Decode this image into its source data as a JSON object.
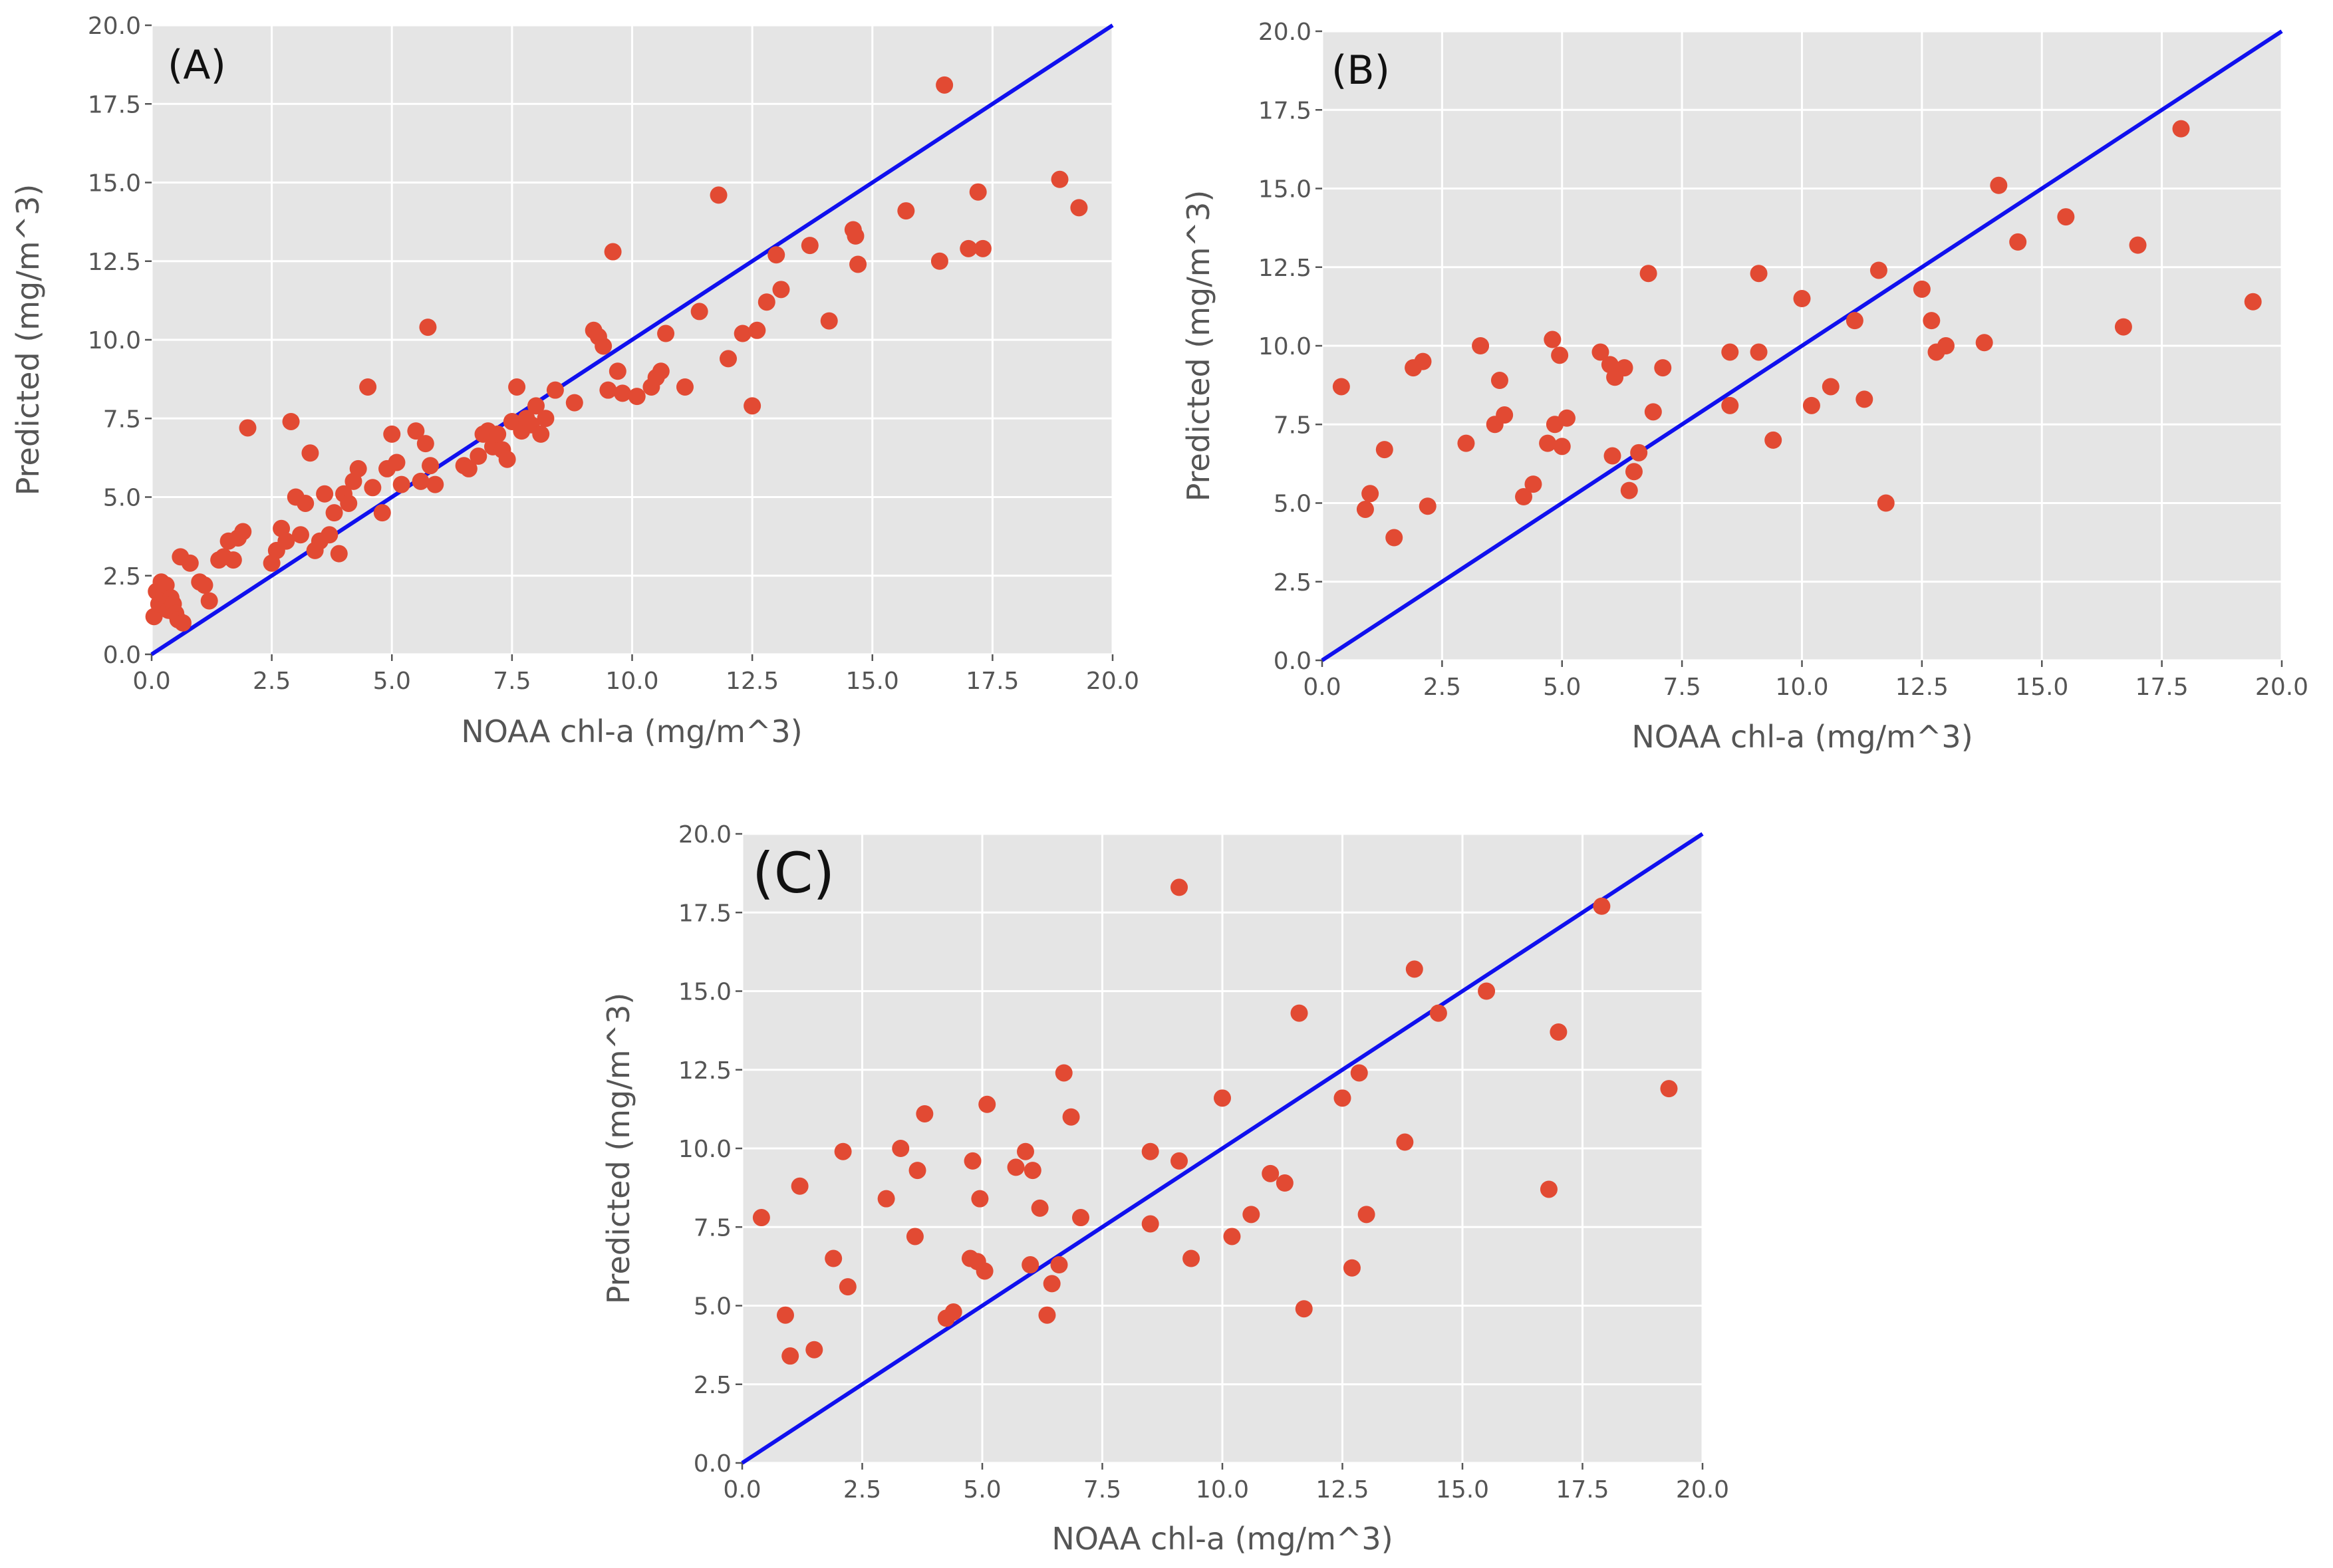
{
  "chart_data": [
    {
      "type": "scatter",
      "panel_label": "(A)",
      "xlabel": "NOAA chl-a (mg/m^3)",
      "ylabel": "Predicted (mg/m^3)",
      "xlim": [
        0,
        20
      ],
      "ylim": [
        0,
        20
      ],
      "x_ticks": [
        "0.0",
        "2.5",
        "5.0",
        "7.5",
        "10.0",
        "12.5",
        "15.0",
        "17.5",
        "20.0"
      ],
      "y_ticks": [
        "0.0",
        "2.5",
        "5.0",
        "7.5",
        "10.0",
        "12.5",
        "15.0",
        "17.5",
        "20.0"
      ],
      "grid": true,
      "reference_line": {
        "label": "y = x",
        "from": [
          0,
          0
        ],
        "to": [
          20,
          20
        ],
        "color": "#1010ee"
      },
      "marker_color": "#e24a33",
      "series": [
        {
          "name": "points",
          "points": [
            [
              0.05,
              1.2
            ],
            [
              0.1,
              2.0
            ],
            [
              0.15,
              1.6
            ],
            [
              0.2,
              2.3
            ],
            [
              0.25,
              1.9
            ],
            [
              0.3,
              2.2
            ],
            [
              0.35,
              1.4
            ],
            [
              0.4,
              1.8
            ],
            [
              0.45,
              1.6
            ],
            [
              0.5,
              1.3
            ],
            [
              0.55,
              1.1
            ],
            [
              0.6,
              3.1
            ],
            [
              0.65,
              1.0
            ],
            [
              0.8,
              2.9
            ],
            [
              1.0,
              2.3
            ],
            [
              1.1,
              2.2
            ],
            [
              1.2,
              1.7
            ],
            [
              1.4,
              3.0
            ],
            [
              1.5,
              3.1
            ],
            [
              1.6,
              3.6
            ],
            [
              1.7,
              3.0
            ],
            [
              1.8,
              3.7
            ],
            [
              1.9,
              3.9
            ],
            [
              2.0,
              7.2
            ],
            [
              2.5,
              2.9
            ],
            [
              2.6,
              3.3
            ],
            [
              2.7,
              4.0
            ],
            [
              2.8,
              3.6
            ],
            [
              2.9,
              7.4
            ],
            [
              3.0,
              5.0
            ],
            [
              3.1,
              3.8
            ],
            [
              3.2,
              4.8
            ],
            [
              3.3,
              6.4
            ],
            [
              3.4,
              3.3
            ],
            [
              3.5,
              3.6
            ],
            [
              3.6,
              5.1
            ],
            [
              3.7,
              3.8
            ],
            [
              3.8,
              4.5
            ],
            [
              3.9,
              3.2
            ],
            [
              4.0,
              5.1
            ],
            [
              4.1,
              4.8
            ],
            [
              4.2,
              5.5
            ],
            [
              4.3,
              5.9
            ],
            [
              4.5,
              8.5
            ],
            [
              4.6,
              5.3
            ],
            [
              4.8,
              4.5
            ],
            [
              4.9,
              5.9
            ],
            [
              5.0,
              7.0
            ],
            [
              5.1,
              6.1
            ],
            [
              5.2,
              5.4
            ],
            [
              5.5,
              7.1
            ],
            [
              5.6,
              5.5
            ],
            [
              5.7,
              6.7
            ],
            [
              5.75,
              10.4
            ],
            [
              5.8,
              6.0
            ],
            [
              5.9,
              5.4
            ],
            [
              6.5,
              6.0
            ],
            [
              6.6,
              5.9
            ],
            [
              6.8,
              6.3
            ],
            [
              6.9,
              7.0
            ],
            [
              7.0,
              7.1
            ],
            [
              7.1,
              6.6
            ],
            [
              7.2,
              7.0
            ],
            [
              7.3,
              6.5
            ],
            [
              7.4,
              6.2
            ],
            [
              7.5,
              7.4
            ],
            [
              7.6,
              8.5
            ],
            [
              7.7,
              7.1
            ],
            [
              7.8,
              7.5
            ],
            [
              7.9,
              7.3
            ],
            [
              8.0,
              7.9
            ],
            [
              8.1,
              7.0
            ],
            [
              8.2,
              7.5
            ],
            [
              8.4,
              8.4
            ],
            [
              8.8,
              8.0
            ],
            [
              9.2,
              10.3
            ],
            [
              9.3,
              10.1
            ],
            [
              9.4,
              9.8
            ],
            [
              9.5,
              8.4
            ],
            [
              9.6,
              12.8
            ],
            [
              9.7,
              9.0
            ],
            [
              9.8,
              8.3
            ],
            [
              10.1,
              8.2
            ],
            [
              10.4,
              8.5
            ],
            [
              10.5,
              8.8
            ],
            [
              10.6,
              9.0
            ],
            [
              10.7,
              10.2
            ],
            [
              11.1,
              8.5
            ],
            [
              11.4,
              10.9
            ],
            [
              11.8,
              14.6
            ],
            [
              12.0,
              9.4
            ],
            [
              12.3,
              10.2
            ],
            [
              12.5,
              7.9
            ],
            [
              12.6,
              10.3
            ],
            [
              12.8,
              11.2
            ],
            [
              13.0,
              12.7
            ],
            [
              13.1,
              11.6
            ],
            [
              13.7,
              13.0
            ],
            [
              14.1,
              10.6
            ],
            [
              14.6,
              13.5
            ],
            [
              14.7,
              12.4
            ],
            [
              14.65,
              13.3
            ],
            [
              15.7,
              14.1
            ],
            [
              16.4,
              12.5
            ],
            [
              16.5,
              18.1
            ],
            [
              17.0,
              12.9
            ],
            [
              17.2,
              14.7
            ],
            [
              17.3,
              12.9
            ],
            [
              18.9,
              15.1
            ],
            [
              19.3,
              14.2
            ]
          ]
        }
      ]
    },
    {
      "type": "scatter",
      "panel_label": "(B)",
      "xlabel": "NOAA chl-a (mg/m^3)",
      "ylabel": "Predicted (mg/m^3)",
      "xlim": [
        0,
        20
      ],
      "ylim": [
        0,
        20
      ],
      "x_ticks": [
        "0.0",
        "2.5",
        "5.0",
        "7.5",
        "10.0",
        "12.5",
        "15.0",
        "17.5",
        "20.0"
      ],
      "y_ticks": [
        "0.0",
        "2.5",
        "5.0",
        "7.5",
        "10.0",
        "12.5",
        "15.0",
        "17.5",
        "20.0"
      ],
      "grid": true,
      "reference_line": {
        "label": "y = x",
        "from": [
          0,
          0
        ],
        "to": [
          20,
          20
        ],
        "color": "#1010ee"
      },
      "marker_color": "#e24a33",
      "series": [
        {
          "name": "points",
          "points": [
            [
              0.4,
              8.7
            ],
            [
              0.9,
              4.8
            ],
            [
              1.0,
              5.3
            ],
            [
              1.3,
              6.7
            ],
            [
              1.5,
              3.9
            ],
            [
              1.9,
              9.3
            ],
            [
              2.1,
              9.5
            ],
            [
              2.2,
              4.9
            ],
            [
              3.0,
              6.9
            ],
            [
              3.3,
              10.0
            ],
            [
              3.6,
              7.5
            ],
            [
              3.7,
              8.9
            ],
            [
              3.8,
              7.8
            ],
            [
              4.2,
              5.2
            ],
            [
              4.4,
              5.6
            ],
            [
              4.7,
              6.9
            ],
            [
              4.8,
              10.2
            ],
            [
              4.85,
              7.5
            ],
            [
              4.95,
              9.7
            ],
            [
              5.0,
              6.8
            ],
            [
              5.1,
              7.7
            ],
            [
              5.8,
              9.8
            ],
            [
              6.0,
              9.4
            ],
            [
              6.05,
              6.5
            ],
            [
              6.1,
              9.0
            ],
            [
              6.3,
              9.3
            ],
            [
              6.4,
              5.4
            ],
            [
              6.5,
              6.0
            ],
            [
              6.6,
              6.6
            ],
            [
              6.8,
              12.3
            ],
            [
              6.9,
              7.9
            ],
            [
              7.1,
              9.3
            ],
            [
              8.5,
              9.8
            ],
            [
              8.5,
              8.1
            ],
            [
              9.1,
              12.3
            ],
            [
              9.1,
              9.8
            ],
            [
              9.4,
              7.0
            ],
            [
              10.0,
              11.5
            ],
            [
              10.2,
              8.1
            ],
            [
              10.6,
              8.7
            ],
            [
              11.1,
              10.8
            ],
            [
              11.3,
              8.3
            ],
            [
              11.6,
              12.4
            ],
            [
              11.75,
              5.0
            ],
            [
              12.5,
              11.8
            ],
            [
              12.7,
              10.8
            ],
            [
              12.8,
              9.8
            ],
            [
              13.0,
              10.0
            ],
            [
              13.8,
              10.1
            ],
            [
              14.1,
              15.1
            ],
            [
              14.5,
              13.3
            ],
            [
              15.5,
              14.1
            ],
            [
              16.7,
              10.6
            ],
            [
              17.0,
              13.2
            ],
            [
              17.9,
              16.9
            ],
            [
              19.4,
              11.4
            ]
          ]
        }
      ]
    },
    {
      "type": "scatter",
      "panel_label": "(C)",
      "xlabel": "NOAA chl-a (mg/m^3)",
      "ylabel": "Predicted (mg/m^3)",
      "xlim": [
        0,
        20
      ],
      "ylim": [
        0,
        20
      ],
      "x_ticks": [
        "0.0",
        "2.5",
        "5.0",
        "7.5",
        "10.0",
        "12.5",
        "15.0",
        "17.5",
        "20.0"
      ],
      "y_ticks": [
        "0.0",
        "2.5",
        "5.0",
        "7.5",
        "10.0",
        "12.5",
        "15.0",
        "17.5",
        "20.0"
      ],
      "grid": true,
      "reference_line": {
        "label": "y = x",
        "from": [
          0,
          0
        ],
        "to": [
          20,
          20
        ],
        "color": "#1010ee"
      },
      "marker_color": "#e24a33",
      "series": [
        {
          "name": "points",
          "points": [
            [
              0.4,
              7.8
            ],
            [
              0.9,
              4.7
            ],
            [
              1.0,
              3.4
            ],
            [
              1.2,
              8.8
            ],
            [
              1.5,
              3.6
            ],
            [
              1.9,
              6.5
            ],
            [
              2.1,
              9.9
            ],
            [
              2.2,
              5.6
            ],
            [
              3.0,
              8.4
            ],
            [
              3.3,
              10.0
            ],
            [
              3.6,
              7.2
            ],
            [
              3.65,
              9.3
            ],
            [
              3.8,
              11.1
            ],
            [
              4.25,
              4.6
            ],
            [
              4.4,
              4.8
            ],
            [
              4.75,
              6.5
            ],
            [
              4.8,
              9.6
            ],
            [
              4.9,
              6.4
            ],
            [
              4.95,
              8.4
            ],
            [
              5.05,
              6.1
            ],
            [
              5.1,
              11.4
            ],
            [
              5.7,
              9.4
            ],
            [
              5.9,
              9.9
            ],
            [
              6.0,
              6.3
            ],
            [
              6.05,
              9.3
            ],
            [
              6.2,
              8.1
            ],
            [
              6.35,
              4.7
            ],
            [
              6.45,
              5.7
            ],
            [
              6.6,
              6.3
            ],
            [
              6.7,
              12.4
            ],
            [
              6.85,
              11.0
            ],
            [
              7.05,
              7.8
            ],
            [
              8.5,
              7.6
            ],
            [
              8.5,
              9.9
            ],
            [
              9.1,
              9.6
            ],
            [
              9.1,
              18.3
            ],
            [
              9.35,
              6.5
            ],
            [
              10.0,
              11.6
            ],
            [
              10.2,
              7.2
            ],
            [
              10.6,
              7.9
            ],
            [
              11.0,
              9.2
            ],
            [
              11.3,
              8.9
            ],
            [
              11.6,
              14.3
            ],
            [
              11.7,
              4.9
            ],
            [
              12.5,
              11.6
            ],
            [
              12.7,
              6.2
            ],
            [
              12.85,
              12.4
            ],
            [
              13.0,
              7.9
            ],
            [
              13.8,
              10.2
            ],
            [
              14.0,
              15.7
            ],
            [
              14.5,
              14.3
            ],
            [
              15.5,
              15.0
            ],
            [
              16.8,
              8.7
            ],
            [
              17.0,
              13.7
            ],
            [
              17.9,
              17.7
            ],
            [
              19.3,
              11.9
            ]
          ]
        }
      ]
    }
  ]
}
